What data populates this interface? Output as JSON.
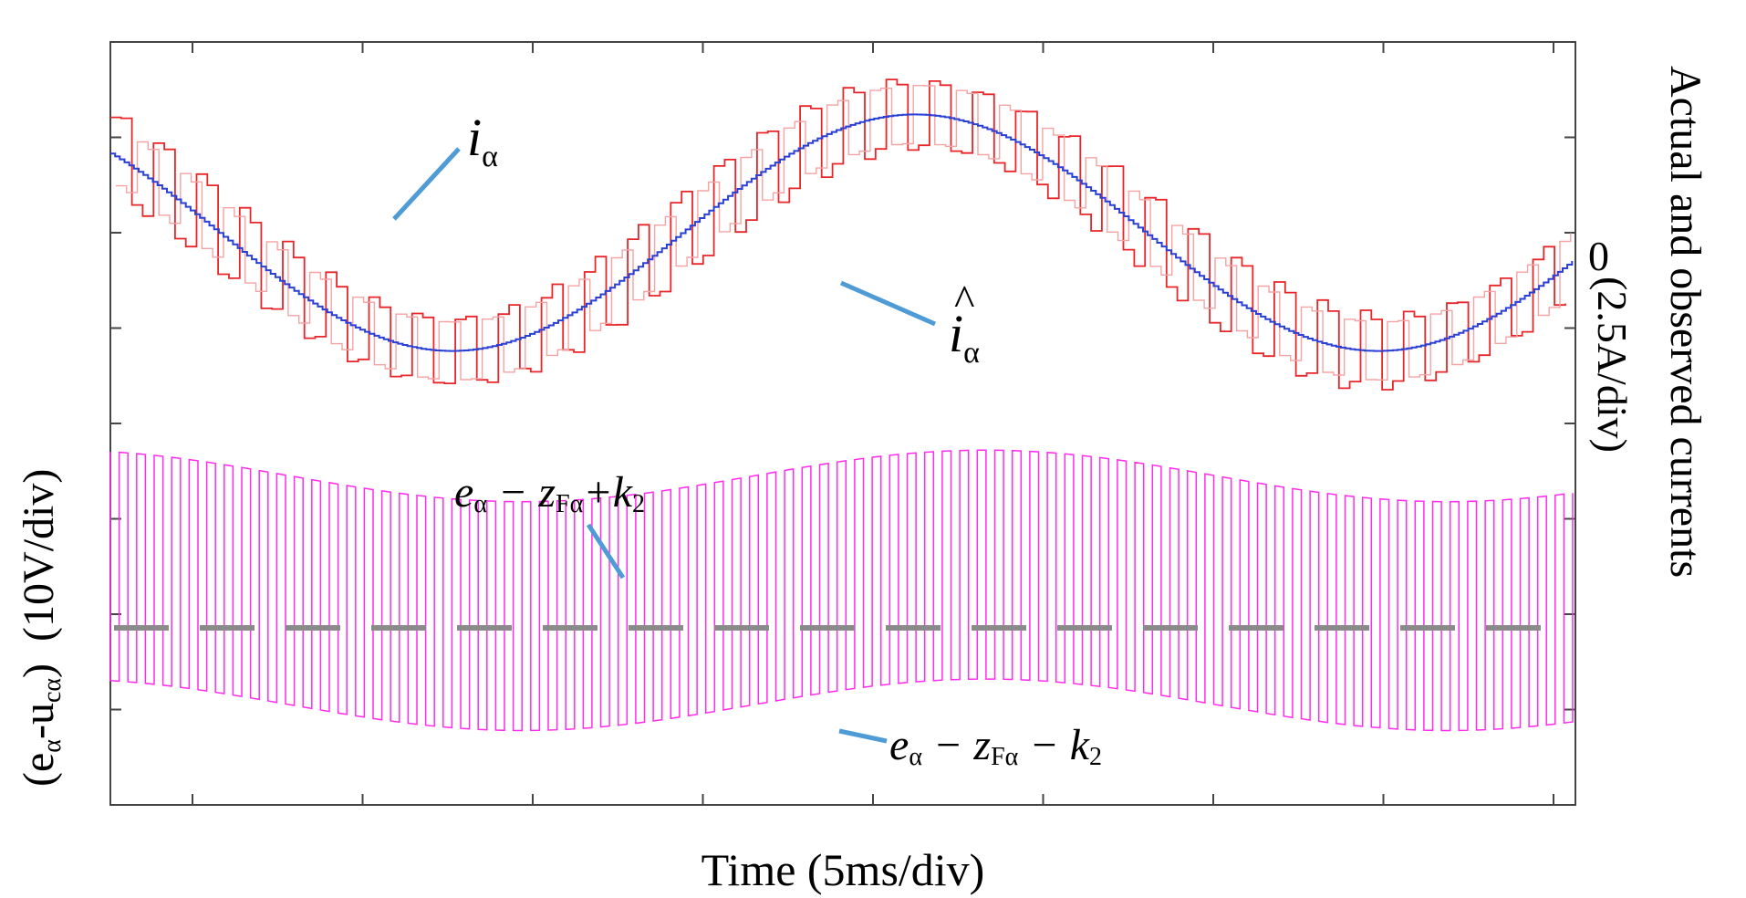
{
  "chart_data": {
    "type": "line",
    "title": "",
    "xlabel": "Time (5ms/div)",
    "ylabel_left": "(eα-ucα)  (10V/div)",
    "ylabel_left_parts": {
      "e": "e",
      "e_sub": "α",
      "dash": "-u",
      "u_sub": "cα",
      "close": ")",
      "unit": "(10V/div)"
    },
    "ylabel_right": "Actual and observed currents",
    "ylabel_right_unit": "(2.5A/div)",
    "zero_label": "0",
    "x_divisions": 9,
    "x_range_ms": [
      0,
      43.5
    ],
    "grid": false,
    "current_axis": {
      "unit": "A",
      "per_div": 2.5,
      "zero_div_from_top": 2
    },
    "voltage_axis": {
      "unit": "V",
      "per_div": 10,
      "zero_div_from_top": 6
    },
    "series": [
      {
        "name": "i_alpha",
        "label": "iα",
        "color": "#e8262a",
        "kind": "current",
        "amplitude_A": 3.2,
        "ripple_A": 1.9,
        "period_ms": 27.5,
        "phase_deg": 138
      },
      {
        "name": "i_alpha_hat",
        "label": "îα",
        "color": "#2a3fd6",
        "kind": "current",
        "amplitude_A": 3.1,
        "period_ms": 27.5,
        "phase_deg": 138
      },
      {
        "name": "e_minus_z_plus_k2",
        "label": "eα − zFα + k2",
        "color": "#ff2cf0",
        "kind": "voltage",
        "offset_V": 14.5,
        "amplitude_V": 2.7,
        "period_ms": 27.5
      },
      {
        "name": "e_minus_z_minus_k2",
        "label": "eα − zFα − k2",
        "color": "#ff2cf0",
        "kind": "voltage",
        "offset_V": -9.5,
        "amplitude_V": 2.7,
        "period_ms": 27.5
      },
      {
        "name": "zero_reference",
        "label": "",
        "color": "#8a8a8a",
        "kind": "reference",
        "value_V": 0
      }
    ],
    "annotations": [
      {
        "target": "i_alpha",
        "text": "i",
        "sub": "α"
      },
      {
        "target": "i_alpha_hat",
        "text": "i",
        "sub": "α",
        "hat": "^"
      },
      {
        "target": "e_minus_z_plus_k2",
        "parts": [
          "e",
          "α",
          " − z",
          "Fα",
          "+k",
          "2"
        ]
      },
      {
        "target": "e_minus_z_minus_k2",
        "parts": [
          "e",
          "α",
          " − z",
          "Fα",
          " − k",
          "2"
        ]
      }
    ]
  },
  "colors": {
    "callout": "#4f9bd6",
    "axis": "#444444"
  }
}
